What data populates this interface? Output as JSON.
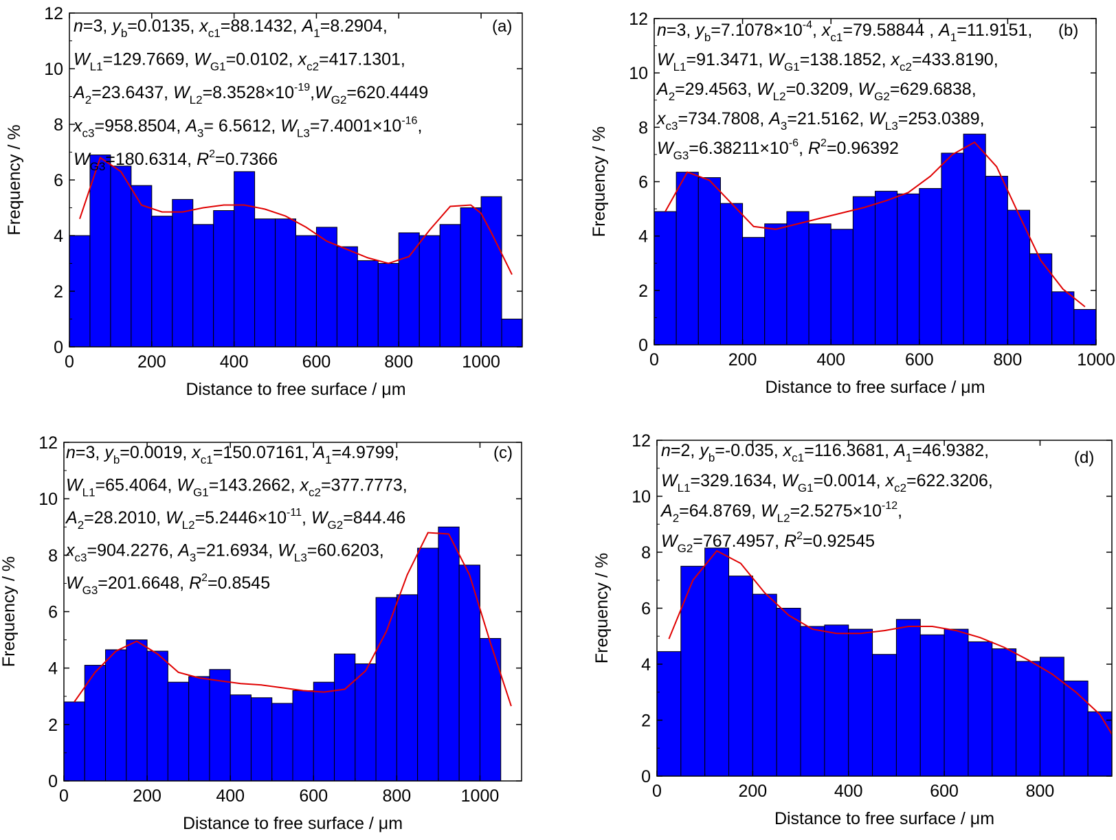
{
  "chart_data": [
    {
      "type": "bar",
      "panel": "(a)",
      "xlabel": "Distance to free surface / μm",
      "ylabel": "Frequency / %",
      "xlim": [
        0,
        1100
      ],
      "ylim": [
        0,
        12
      ],
      "xticks": [
        "0",
        "200",
        "400",
        "600",
        "800",
        "1000"
      ],
      "yticks": [
        "0",
        "2",
        "4",
        "6",
        "8",
        "10",
        "12"
      ],
      "bin_width": 50,
      "bin_starts": [
        0,
        50,
        100,
        150,
        200,
        250,
        300,
        350,
        400,
        450,
        500,
        550,
        600,
        650,
        700,
        750,
        800,
        850,
        900,
        950,
        1000,
        1050
      ],
      "values": [
        4.0,
        6.9,
        6.5,
        5.8,
        4.7,
        5.3,
        4.4,
        4.9,
        6.3,
        4.6,
        4.6,
        4.0,
        4.3,
        3.6,
        3.1,
        3.0,
        4.1,
        4.0,
        4.4,
        5.0,
        5.4,
        1.0
      ],
      "fit_x": [
        25,
        75,
        125,
        175,
        225,
        275,
        325,
        375,
        425,
        475,
        525,
        575,
        625,
        675,
        725,
        775,
        825,
        875,
        925,
        975,
        1000,
        1025,
        1075
      ],
      "fit_y": [
        4.6,
        6.8,
        6.3,
        5.1,
        4.85,
        4.85,
        5.0,
        5.1,
        5.1,
        4.95,
        4.7,
        4.3,
        3.8,
        3.5,
        3.2,
        3.0,
        3.25,
        4.2,
        5.05,
        5.1,
        4.8,
        4.1,
        2.6
      ],
      "annotation_lines": [
        [
          [
            "i",
            "n"
          ],
          [
            "t",
            "=3, "
          ],
          [
            "i",
            "y"
          ],
          [
            "sub",
            "b"
          ],
          [
            "t",
            "=0.0135, "
          ],
          [
            "i",
            "x"
          ],
          [
            "sub",
            "c1"
          ],
          [
            "t",
            "=88.1432, "
          ],
          [
            "i",
            "A"
          ],
          [
            "sub",
            "1"
          ],
          [
            "t",
            "=8.2904,"
          ]
        ],
        [
          [
            "i",
            "W"
          ],
          [
            "sub",
            "L1"
          ],
          [
            "t",
            "=129.7669, "
          ],
          [
            "i",
            "W"
          ],
          [
            "sub",
            "G1"
          ],
          [
            "t",
            "=0.0102, "
          ],
          [
            "i",
            "x"
          ],
          [
            "sub",
            "c2"
          ],
          [
            "t",
            "=417.1301,"
          ]
        ],
        [
          [
            "i",
            "A"
          ],
          [
            "sub",
            "2"
          ],
          [
            "t",
            "=23.6437, "
          ],
          [
            "i",
            "W"
          ],
          [
            "sub",
            "L2"
          ],
          [
            "t",
            "=8.3528×10"
          ],
          [
            "sup",
            "-19"
          ],
          [
            "t",
            ","
          ],
          [
            "i",
            "W"
          ],
          [
            "sub",
            "G2"
          ],
          [
            "t",
            "=620.4449"
          ]
        ],
        [
          [
            "i",
            "x"
          ],
          [
            "sub",
            "c3"
          ],
          [
            "t",
            "=958.8504, "
          ],
          [
            "i",
            "A"
          ],
          [
            "sub",
            "3"
          ],
          [
            "t",
            "= 6.5612, "
          ],
          [
            "i",
            "W"
          ],
          [
            "sub",
            "L3"
          ],
          [
            "t",
            "=7.4001×10"
          ],
          [
            "sup",
            "-16"
          ],
          [
            "t",
            ","
          ]
        ],
        [
          [
            "t",
            "        "
          ],
          [
            "i",
            "W"
          ],
          [
            "sub",
            "G3"
          ],
          [
            "t",
            "=180.6314, "
          ],
          [
            "i",
            "R"
          ],
          [
            "sup",
            "2"
          ],
          [
            "t",
            "=0.7366"
          ]
        ]
      ]
    },
    {
      "type": "bar",
      "panel": "(b)",
      "xlabel": "Distance to free surface / μm",
      "ylabel": "Frequency / %",
      "xlim": [
        0,
        1000
      ],
      "ylim": [
        0,
        12
      ],
      "xticks": [
        "0",
        "200",
        "400",
        "600",
        "800",
        "1000"
      ],
      "yticks": [
        "0",
        "2",
        "4",
        "6",
        "8",
        "10",
        "12"
      ],
      "bin_width": 50,
      "bin_starts": [
        0,
        50,
        100,
        150,
        200,
        250,
        300,
        350,
        400,
        450,
        500,
        550,
        600,
        650,
        700,
        750,
        800,
        850,
        900,
        950
      ],
      "values": [
        4.9,
        6.35,
        6.15,
        5.2,
        3.95,
        4.45,
        4.9,
        4.45,
        4.25,
        5.45,
        5.65,
        5.55,
        5.75,
        7.05,
        7.75,
        6.2,
        4.95,
        3.35,
        1.95,
        1.3
      ],
      "fit_x": [
        25,
        75,
        125,
        175,
        225,
        275,
        325,
        375,
        425,
        475,
        525,
        575,
        625,
        675,
        725,
        775,
        825,
        875,
        925,
        975
      ],
      "fit_y": [
        4.9,
        6.35,
        6.05,
        5.2,
        4.35,
        4.25,
        4.45,
        4.65,
        4.85,
        5.05,
        5.3,
        5.6,
        6.2,
        7.0,
        7.45,
        6.55,
        4.8,
        3.1,
        2.05,
        1.4
      ],
      "annotation_lines": [
        [
          [
            "i",
            "n"
          ],
          [
            "t",
            "=3, "
          ],
          [
            "i",
            "y"
          ],
          [
            "sub",
            "b"
          ],
          [
            "t",
            "=7.1078×10"
          ],
          [
            "sup",
            "-4"
          ],
          [
            "t",
            ", "
          ],
          [
            "i",
            "x"
          ],
          [
            "sub",
            "c1"
          ],
          [
            "t",
            "=79.58844 , "
          ],
          [
            "i",
            "A"
          ],
          [
            "sub",
            "1"
          ],
          [
            "t",
            "=11.9151,"
          ]
        ],
        [
          [
            "i",
            "W"
          ],
          [
            "sub",
            "L1"
          ],
          [
            "t",
            "=91.3471, "
          ],
          [
            "i",
            "W"
          ],
          [
            "sub",
            "G1"
          ],
          [
            "t",
            "=138.1852, "
          ],
          [
            "i",
            "x"
          ],
          [
            "sub",
            "c2"
          ],
          [
            "t",
            "=433.8190,"
          ]
        ],
        [
          [
            "i",
            "A"
          ],
          [
            "sub",
            "2"
          ],
          [
            "t",
            "=29.4563, "
          ],
          [
            "i",
            "W"
          ],
          [
            "sub",
            "L2"
          ],
          [
            "t",
            "=0.3209, "
          ],
          [
            "i",
            "W"
          ],
          [
            "sub",
            "G2"
          ],
          [
            "t",
            "=629.6838,"
          ]
        ],
        [
          [
            "i",
            "x"
          ],
          [
            "sub",
            "c3"
          ],
          [
            "t",
            "=734.7808, "
          ],
          [
            "i",
            "A"
          ],
          [
            "sub",
            "3"
          ],
          [
            "t",
            "=21.5162, "
          ],
          [
            "i",
            "W"
          ],
          [
            "sub",
            "L3"
          ],
          [
            "t",
            "=253.0389,"
          ]
        ],
        [
          [
            "i",
            "W"
          ],
          [
            "sub",
            "G3"
          ],
          [
            "t",
            "=6.38211×10"
          ],
          [
            "sup",
            "-6"
          ],
          [
            "t",
            ", "
          ],
          [
            "i",
            "R"
          ],
          [
            "sup",
            "2"
          ],
          [
            "t",
            "=0.96392"
          ]
        ]
      ]
    },
    {
      "type": "bar",
      "panel": "(c)",
      "xlabel": "Distance to free surface / μm",
      "ylabel": "Frequency / %",
      "xlim": [
        0,
        1100
      ],
      "ylim": [
        0,
        12
      ],
      "xticks": [
        "0",
        "200",
        "400",
        "600",
        "800",
        "1000"
      ],
      "yticks": [
        "0",
        "2",
        "4",
        "6",
        "8",
        "10",
        "12"
      ],
      "bin_width": 50,
      "bin_starts": [
        0,
        50,
        100,
        150,
        200,
        250,
        300,
        350,
        400,
        450,
        500,
        550,
        600,
        650,
        700,
        750,
        800,
        850,
        900,
        950,
        1000
      ],
      "values": [
        2.8,
        4.1,
        4.65,
        5.0,
        4.6,
        3.5,
        3.7,
        3.95,
        3.05,
        2.95,
        2.75,
        3.2,
        3.5,
        4.5,
        4.15,
        6.5,
        6.6,
        8.25,
        9.0,
        7.65,
        5.05
      ],
      "fit_x": [
        25,
        75,
        125,
        175,
        225,
        275,
        325,
        375,
        425,
        475,
        525,
        575,
        625,
        675,
        725,
        775,
        825,
        875,
        925,
        975,
        1025,
        1075
      ],
      "fit_y": [
        2.8,
        3.85,
        4.6,
        4.95,
        4.5,
        3.85,
        3.65,
        3.55,
        3.45,
        3.4,
        3.3,
        3.2,
        3.15,
        3.25,
        3.9,
        5.3,
        7.3,
        8.8,
        8.75,
        7.3,
        4.9,
        2.65
      ],
      "annotation_lines": [
        [
          [
            "i",
            "n"
          ],
          [
            "t",
            "=3, "
          ],
          [
            "i",
            "y"
          ],
          [
            "sub",
            "b"
          ],
          [
            "t",
            "=0.0019, "
          ],
          [
            "i",
            "x"
          ],
          [
            "sub",
            "c1"
          ],
          [
            "t",
            "=150.07161, "
          ],
          [
            "i",
            "A"
          ],
          [
            "sub",
            "1"
          ],
          [
            "t",
            "=4.9799,"
          ]
        ],
        [
          [
            "i",
            "W"
          ],
          [
            "sub",
            "L1"
          ],
          [
            "t",
            "=65.4064, "
          ],
          [
            "i",
            "W"
          ],
          [
            "sub",
            "G1"
          ],
          [
            "t",
            "=143.2662, "
          ],
          [
            "i",
            "x"
          ],
          [
            "sub",
            "c2"
          ],
          [
            "t",
            "=377.7773,"
          ]
        ],
        [
          [
            "i",
            "A"
          ],
          [
            "sub",
            "2"
          ],
          [
            "t",
            "=28.2010, "
          ],
          [
            "i",
            "W"
          ],
          [
            "sub",
            "L2"
          ],
          [
            "t",
            "=5.2446×10"
          ],
          [
            "sup",
            "-11"
          ],
          [
            "t",
            ", "
          ],
          [
            "i",
            "W"
          ],
          [
            "sub",
            "G2"
          ],
          [
            "t",
            "=844.46"
          ]
        ],
        [
          [
            "i",
            "x"
          ],
          [
            "sub",
            "c3"
          ],
          [
            "t",
            "=904.2276, "
          ],
          [
            "i",
            "A"
          ],
          [
            "sub",
            "3"
          ],
          [
            "t",
            "=21.6934, "
          ],
          [
            "i",
            "W"
          ],
          [
            "sub",
            "L3"
          ],
          [
            "t",
            "=60.6203,"
          ]
        ],
        [
          [
            "i",
            "W"
          ],
          [
            "sub",
            "G3"
          ],
          [
            "t",
            "=201.6648, "
          ],
          [
            "i",
            "R"
          ],
          [
            "sup",
            "2"
          ],
          [
            "t",
            "=0.8545"
          ]
        ]
      ]
    },
    {
      "type": "bar",
      "panel": "(d)",
      "xlabel": "Distance to free surface / μm",
      "ylabel": "Frequency / %",
      "xlim": [
        0,
        950
      ],
      "ylim": [
        0,
        12
      ],
      "xticks": [
        "0",
        "200",
        "400",
        "600",
        "800"
      ],
      "yticks": [
        "0",
        "2",
        "4",
        "6",
        "8",
        "10",
        "12"
      ],
      "bin_width": 50,
      "bin_starts": [
        0,
        50,
        100,
        150,
        200,
        250,
        300,
        350,
        400,
        450,
        500,
        550,
        600,
        650,
        700,
        750,
        800,
        850,
        900
      ],
      "values": [
        4.45,
        7.5,
        8.15,
        7.15,
        6.5,
        6.0,
        5.35,
        5.4,
        5.25,
        4.35,
        5.6,
        5.05,
        5.25,
        4.8,
        4.55,
        4.1,
        4.25,
        3.4,
        2.3
      ],
      "fit_x": [
        25,
        75,
        125,
        175,
        225,
        275,
        325,
        375,
        425,
        475,
        525,
        575,
        625,
        675,
        725,
        775,
        825,
        875,
        925,
        950
      ],
      "fit_y": [
        4.9,
        7.0,
        8.05,
        7.6,
        6.55,
        5.75,
        5.25,
        5.1,
        5.1,
        5.2,
        5.35,
        5.35,
        5.2,
        4.95,
        4.6,
        4.15,
        3.65,
        3.0,
        2.2,
        1.5
      ],
      "annotation_lines": [
        [
          [
            "i",
            "n"
          ],
          [
            "t",
            "=2, "
          ],
          [
            "i",
            "y"
          ],
          [
            "sub",
            "b"
          ],
          [
            "t",
            "=-0.035, "
          ],
          [
            "i",
            "x"
          ],
          [
            "sub",
            "c1"
          ],
          [
            "t",
            "=116.3681, "
          ],
          [
            "i",
            "A"
          ],
          [
            "sub",
            "1"
          ],
          [
            "t",
            "=46.9382,"
          ]
        ],
        [
          [
            "i",
            "W"
          ],
          [
            "sub",
            "L1"
          ],
          [
            "t",
            "=329.1634, "
          ],
          [
            "i",
            "W"
          ],
          [
            "sub",
            "G1"
          ],
          [
            "t",
            "=0.0014, "
          ],
          [
            "i",
            "x"
          ],
          [
            "sub",
            "c2"
          ],
          [
            "t",
            "=622.3206,"
          ]
        ],
        [
          [
            "i",
            "A"
          ],
          [
            "sub",
            "2"
          ],
          [
            "t",
            "=64.8769, "
          ],
          [
            "i",
            "W"
          ],
          [
            "sub",
            "L2"
          ],
          [
            "t",
            "=2.5275×10"
          ],
          [
            "sup",
            "-12"
          ],
          [
            "t",
            ","
          ]
        ],
        [
          [
            "t",
            "        "
          ],
          [
            "i",
            "W"
          ],
          [
            "sub",
            "G2"
          ],
          [
            "t",
            "=767.4957, "
          ],
          [
            "i",
            "R"
          ],
          [
            "sup",
            "2"
          ],
          [
            "t",
            "=0.92545"
          ]
        ]
      ]
    }
  ],
  "colors": {
    "bar_fill": "#0000ff",
    "bar_edge": "#000000",
    "fit_line": "#e00000",
    "axes": "#000000"
  }
}
